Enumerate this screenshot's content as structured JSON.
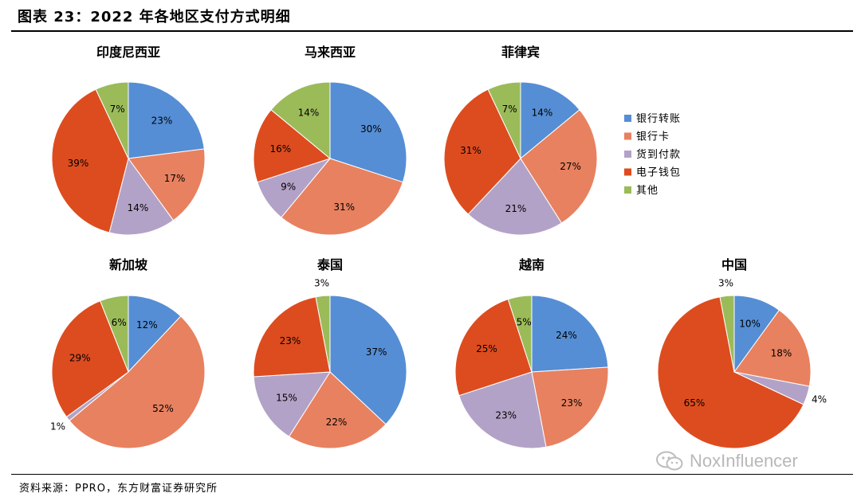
{
  "page": {
    "title": "图表 23：2022 年各地区支付方式明细",
    "source": "资料来源：PPRO，东方财富证券研究所",
    "watermark": "NoxInfluencer"
  },
  "colors": {
    "bank_transfer": "#558ed5",
    "bank_card": "#e8815f",
    "cod": "#b3a2c7",
    "ewallet": "#dd4c1f",
    "other": "#9bbb59"
  },
  "chart_data": {
    "type": "pie",
    "legend_placement": "right",
    "legend": [
      {
        "name": "银行转账",
        "color": "#558ed5"
      },
      {
        "name": "银行卡",
        "color": "#e8815f"
      },
      {
        "name": "货到付款",
        "color": "#b3a2c7"
      },
      {
        "name": "电子钱包",
        "color": "#dd4c1f"
      },
      {
        "name": "其他",
        "color": "#9bbb59"
      }
    ],
    "categories": [
      "银行转账",
      "银行卡",
      "货到付款",
      "电子钱包",
      "其他"
    ],
    "pies": [
      {
        "title": "印度尼西亚",
        "values": [
          23,
          17,
          14,
          39,
          7
        ]
      },
      {
        "title": "马来西亚",
        "values": [
          30,
          31,
          9,
          16,
          14
        ]
      },
      {
        "title": "菲律宾",
        "values": [
          14,
          27,
          21,
          31,
          7
        ]
      },
      {
        "title": "新加坡",
        "values": [
          12,
          52,
          1,
          29,
          6
        ]
      },
      {
        "title": "泰国",
        "values": [
          37,
          22,
          15,
          23,
          3
        ]
      },
      {
        "title": "越南",
        "values": [
          24,
          23,
          23,
          25,
          5
        ]
      },
      {
        "title": "中国",
        "values": [
          10,
          18,
          4,
          65,
          3
        ]
      }
    ]
  }
}
